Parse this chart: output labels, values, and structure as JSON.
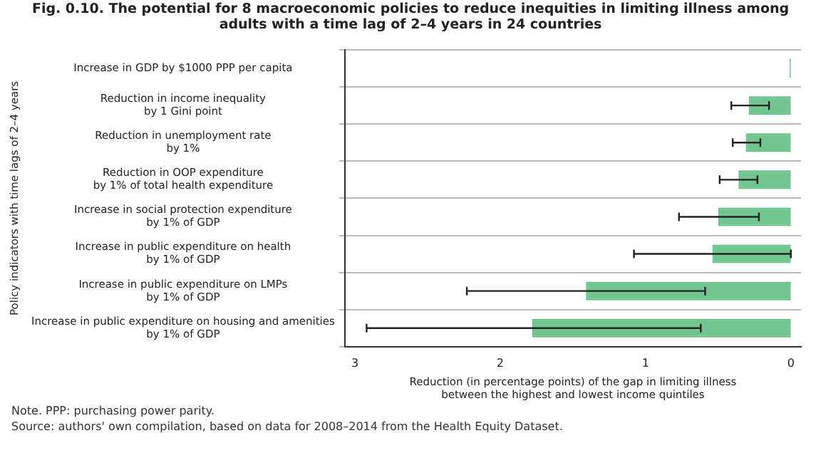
{
  "chart_data": {
    "type": "bar",
    "orientation": "horizontal",
    "title": "Fig. 0.10. The potential for 8 macroeconomic policies to reduce inequities in limiting illness among adults with a time lag of 2–4 years in 24 countries",
    "xlabel": "Reduction (in percentage points) of the gap in limiting illness\nbetween the highest and lowest income quintiles",
    "ylabel": "Policy indicators with time lags of 2–4 years",
    "categories": [
      "Increase in GDP by $1000 PPP per capita",
      "Reduction in income inequality\nby 1 Gini point",
      "Reduction in unemployment rate\nby 1%",
      "Reduction in OOP expenditure\nby 1% of total health expenditure",
      "Increase in social protection expenditure\nby 1% of GDP",
      "Increase in public expenditure on health\nby 1% of GDP",
      "Increase in public expenditure on LMPs\nby 1% of GDP",
      "Increase in public expenditure on housing and amenities\nby 1% of GDP"
    ],
    "values": [
      0.01,
      0.29,
      0.31,
      0.36,
      0.5,
      0.54,
      1.41,
      1.78
    ],
    "errors": [
      null,
      [
        0.15,
        0.41
      ],
      [
        0.21,
        0.4
      ],
      [
        0.23,
        0.49
      ],
      [
        0.22,
        0.77
      ],
      [
        0,
        1.08
      ],
      [
        0.59,
        2.23
      ],
      [
        0.62,
        2.92
      ]
    ],
    "color": "#5bbd7f",
    "xlim": [
      3.07,
      -0.07
    ],
    "xticks": [
      3,
      2,
      1,
      0
    ],
    "grid": "y",
    "legend": false,
    "annotations": [
      "Note. PPP: purchasing power parity.",
      "Source: authors' own compilation, based on data for 2008–2014 from the Health Equity Dataset."
    ]
  }
}
